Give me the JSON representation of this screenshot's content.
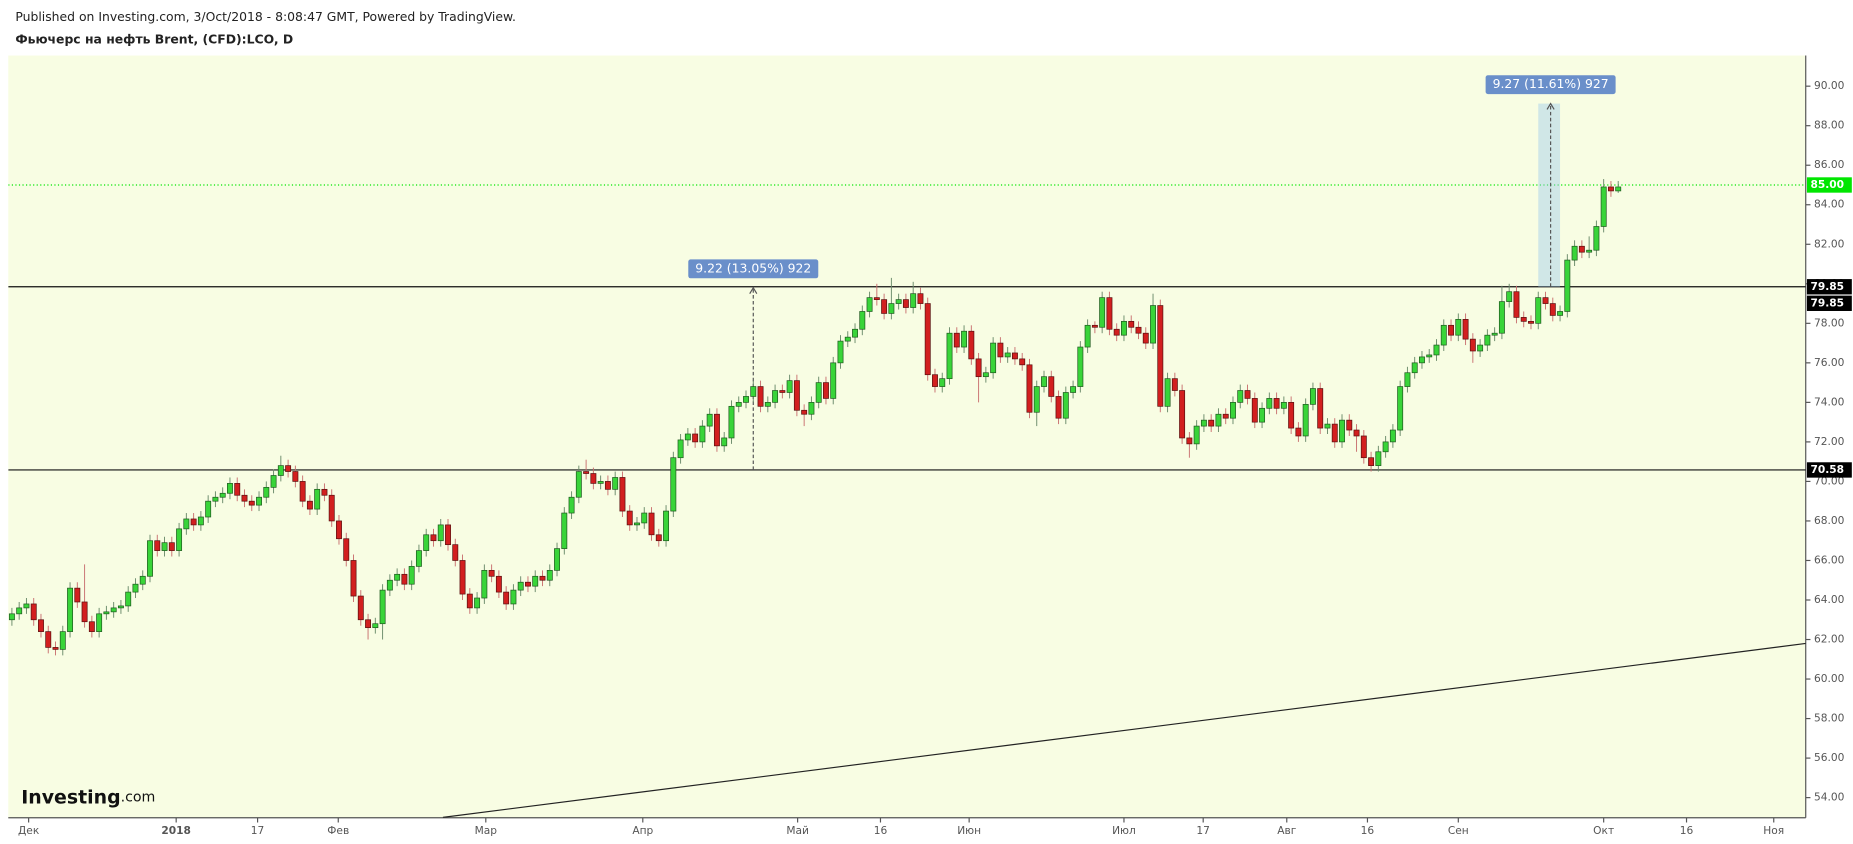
{
  "header": {
    "published": "Published on Investing.com, 3/Oct/2018 - 8:08:47 GMT, Powered by TradingView.",
    "symbol": "Фьючерс на нефть Brent, (CFD):LCO, D"
  },
  "logo": {
    "name": "Investing",
    "suffix": ".com"
  },
  "chart_data": {
    "type": "candlestick",
    "up_color": "#39d439",
    "down_color": "#d21f1f",
    "background": "#f8fde3",
    "xlim": [
      -0.5,
      246.8
    ],
    "ylim": [
      52.98,
      91.55
    ],
    "xticks": [
      {
        "value": 2.3,
        "label": "Дек"
      },
      {
        "value": 22.6,
        "label": "2018"
      },
      {
        "value": 33.8,
        "label": "17"
      },
      {
        "value": 44.9,
        "label": "Фев"
      },
      {
        "value": 65.2,
        "label": "Мар"
      },
      {
        "value": 86.8,
        "label": "Апр"
      },
      {
        "value": 108.1,
        "label": "Май"
      },
      {
        "value": 119.5,
        "label": "16"
      },
      {
        "value": 131.7,
        "label": "Июн"
      },
      {
        "value": 153,
        "label": "Июл"
      },
      {
        "value": 163.9,
        "label": "17"
      },
      {
        "value": 175.4,
        "label": "Авг"
      },
      {
        "value": 186.5,
        "label": "16"
      },
      {
        "value": 199,
        "label": "Сен"
      },
      {
        "value": 219,
        "label": "Окт"
      },
      {
        "value": 230.4,
        "label": "16"
      },
      {
        "value": 242.4,
        "label": "Ноя"
      }
    ],
    "yticks": [
      {
        "value": 54,
        "label": "54.00"
      },
      {
        "value": 56,
        "label": "56.00"
      },
      {
        "value": 58,
        "label": "58.00"
      },
      {
        "value": 60,
        "label": "60.00"
      },
      {
        "value": 62,
        "label": "62.00"
      },
      {
        "value": 64,
        "label": "64.00"
      },
      {
        "value": 66,
        "label": "66.00"
      },
      {
        "value": 68,
        "label": "68.00"
      },
      {
        "value": 70,
        "label": "70.00"
      },
      {
        "value": 72,
        "label": "72.00"
      },
      {
        "value": 74,
        "label": "74.00"
      },
      {
        "value": 76,
        "label": "76.00"
      },
      {
        "value": 78,
        "label": "78.00"
      },
      {
        "value": 80,
        "label": "80.00"
      },
      {
        "value": 82,
        "label": "82.00"
      },
      {
        "value": 84,
        "label": "84.00"
      },
      {
        "value": 86,
        "label": "86.00"
      },
      {
        "value": 88,
        "label": "88.00"
      },
      {
        "value": 90,
        "label": "90.00"
      }
    ],
    "open": [
      63.0,
      63.3,
      63.6,
      63.8,
      63.0,
      62.4,
      61.6,
      61.5,
      62.4,
      64.6,
      63.9,
      62.9,
      62.4,
      63.3,
      63.4,
      63.6,
      63.7,
      64.4,
      64.8,
      65.2,
      67.0,
      66.5,
      66.9,
      66.5,
      67.6,
      68.1,
      67.8,
      68.2,
      69.0,
      69.2,
      69.4,
      69.9,
      69.3,
      69.0,
      68.8,
      69.2,
      69.7,
      70.3,
      70.8,
      70.5,
      70.0,
      69.0,
      68.6,
      69.6,
      69.3,
      68.0,
      67.1,
      66.0,
      64.2,
      63.0,
      62.6,
      62.8,
      64.5,
      65.0,
      65.3,
      64.8,
      65.7,
      66.5,
      67.3,
      67.0,
      67.8,
      66.8,
      66.0,
      64.3,
      63.6,
      64.1,
      65.5,
      65.2,
      64.4,
      63.8,
      64.5,
      64.9,
      64.7,
      65.2,
      65.0,
      65.5,
      66.6,
      68.4,
      69.2,
      70.5,
      70.4,
      69.9,
      70.0,
      69.6,
      70.2,
      68.5,
      67.8,
      67.9,
      68.4,
      67.3,
      67.0,
      68.5,
      71.2,
      72.1,
      72.4,
      72.0,
      72.8,
      73.4,
      71.8,
      72.2,
      73.8,
      74.0,
      74.3,
      74.8,
      73.8,
      74.0,
      74.6,
      74.5,
      75.1,
      73.6,
      73.4,
      74.0,
      75.0,
      74.2,
      76.0,
      77.1,
      77.3,
      77.7,
      78.6,
      79.3,
      79.2,
      78.5,
      79.0,
      79.2,
      78.8,
      79.5,
      79.0,
      75.4,
      74.8,
      75.2,
      77.5,
      76.8,
      77.6,
      76.2,
      75.3,
      75.5,
      77.0,
      76.3,
      76.5,
      76.2,
      75.9,
      73.5,
      74.8,
      75.3,
      74.3,
      73.2,
      74.5,
      74.8,
      76.8,
      77.9,
      77.8,
      79.3,
      77.7,
      77.4,
      78.1,
      77.8,
      77.5,
      77.0,
      78.9,
      73.8,
      75.2,
      74.6,
      72.2,
      71.9,
      72.8,
      73.1,
      72.8,
      73.4,
      73.2,
      74.0,
      74.6,
      74.2,
      73.0,
      73.7,
      74.2,
      73.7,
      74.0,
      72.7,
      72.3,
      73.9,
      74.7,
      72.7,
      72.9,
      72.0,
      73.1,
      72.6,
      72.3,
      71.2,
      70.8,
      71.5,
      72.0,
      72.6,
      74.8,
      75.5,
      76.0,
      76.3,
      76.4,
      76.9,
      77.9,
      77.4,
      78.2,
      77.2,
      76.6,
      76.9,
      77.4,
      77.5,
      79.1,
      79.6,
      78.3,
      78.1,
      78.0,
      79.3,
      79.0,
      78.4,
      78.6,
      81.2,
      81.9,
      81.6,
      81.7,
      82.9,
      84.9,
      84.7
    ],
    "high": [
      63.6,
      63.9,
      64.1,
      64.1,
      63.3,
      62.7,
      61.9,
      62.7,
      64.9,
      64.9,
      65.8,
      63.2,
      63.6,
      63.7,
      63.9,
      64.0,
      64.7,
      65.1,
      65.5,
      67.3,
      67.3,
      67.2,
      67.2,
      67.9,
      68.4,
      68.4,
      68.5,
      69.3,
      69.5,
      69.7,
      70.2,
      70.2,
      69.6,
      69.3,
      69.5,
      70.0,
      70.6,
      71.3,
      71.1,
      70.8,
      70.3,
      69.3,
      69.9,
      69.9,
      69.6,
      68.3,
      67.4,
      66.3,
      64.5,
      63.3,
      63.1,
      64.8,
      65.3,
      65.6,
      65.6,
      66.0,
      66.8,
      67.6,
      67.6,
      68.1,
      68.1,
      67.1,
      66.3,
      64.6,
      64.4,
      65.8,
      65.8,
      65.5,
      64.7,
      64.8,
      65.2,
      65.2,
      65.5,
      65.5,
      65.8,
      66.9,
      68.7,
      69.5,
      70.8,
      71.1,
      70.7,
      70.3,
      70.3,
      70.5,
      70.5,
      68.8,
      68.2,
      68.7,
      68.7,
      67.6,
      68.8,
      71.5,
      72.4,
      72.7,
      72.7,
      73.1,
      73.7,
      73.7,
      72.5,
      74.1,
      74.3,
      74.6,
      75.1,
      75.1,
      74.3,
      74.9,
      74.9,
      75.4,
      75.4,
      73.9,
      74.3,
      75.3,
      75.3,
      76.3,
      77.4,
      77.6,
      78.0,
      78.9,
      79.6,
      80.0,
      79.5,
      80.3,
      79.5,
      79.5,
      80.1,
      79.8,
      79.3,
      75.7,
      75.5,
      77.8,
      77.8,
      77.9,
      77.9,
      76.5,
      75.8,
      77.3,
      77.3,
      76.8,
      76.8,
      76.5,
      76.2,
      75.1,
      75.6,
      75.6,
      74.6,
      74.8,
      75.1,
      77.1,
      78.2,
      78.1,
      79.6,
      79.6,
      78.0,
      78.4,
      78.4,
      78.1,
      77.8,
      79.5,
      79.2,
      75.5,
      75.5,
      74.9,
      72.5,
      73.1,
      73.4,
      73.4,
      73.7,
      73.7,
      74.3,
      74.9,
      74.9,
      74.5,
      74.0,
      74.5,
      74.5,
      74.3,
      74.3,
      73.0,
      74.2,
      75.0,
      75.0,
      73.2,
      73.2,
      73.4,
      73.4,
      72.9,
      72.6,
      71.5,
      71.8,
      72.3,
      72.9,
      75.1,
      75.8,
      76.3,
      76.6,
      76.7,
      77.2,
      78.2,
      78.2,
      78.5,
      78.5,
      77.5,
      77.2,
      77.7,
      77.8,
      79.9,
      80.0,
      79.9,
      78.6,
      78.4,
      79.6,
      79.6,
      79.3,
      78.9,
      81.5,
      82.2,
      82.2,
      82.4,
      83.2,
      85.3,
      85.2,
      85.2
    ],
    "low": [
      62.7,
      63.0,
      63.3,
      62.7,
      62.1,
      61.3,
      61.2,
      61.2,
      62.1,
      63.6,
      62.6,
      62.1,
      62.1,
      63.0,
      63.1,
      63.3,
      63.4,
      64.1,
      64.5,
      64.9,
      66.2,
      66.2,
      66.2,
      66.2,
      67.3,
      67.5,
      67.5,
      67.9,
      68.7,
      68.9,
      69.1,
      69.0,
      68.7,
      68.5,
      68.5,
      68.9,
      69.4,
      70.0,
      70.2,
      69.7,
      68.7,
      68.3,
      68.3,
      69.0,
      67.7,
      66.8,
      65.7,
      63.9,
      62.7,
      62.0,
      62.3,
      62.0,
      64.2,
      64.7,
      64.5,
      64.5,
      65.4,
      66.2,
      66.7,
      66.7,
      66.5,
      65.7,
      64.0,
      63.3,
      63.3,
      63.8,
      64.9,
      64.1,
      63.5,
      63.5,
      64.2,
      64.4,
      64.4,
      64.7,
      64.7,
      65.2,
      66.3,
      68.1,
      68.9,
      70.1,
      69.6,
      69.6,
      69.3,
      69.3,
      68.2,
      67.5,
      67.5,
      67.6,
      67.0,
      66.7,
      66.7,
      68.2,
      70.9,
      71.8,
      71.7,
      71.7,
      72.5,
      71.5,
      71.5,
      71.9,
      73.5,
      73.7,
      74.0,
      73.5,
      73.5,
      73.7,
      74.2,
      74.2,
      73.3,
      72.8,
      73.1,
      73.7,
      73.9,
      73.9,
      75.7,
      76.8,
      77.0,
      77.4,
      78.3,
      78.9,
      78.2,
      78.2,
      78.7,
      78.5,
      78.5,
      78.7,
      75.1,
      74.5,
      74.5,
      74.9,
      76.5,
      76.5,
      75.9,
      74.0,
      75.0,
      75.2,
      76.0,
      76.0,
      75.9,
      75.6,
      73.2,
      72.8,
      74.5,
      74.0,
      72.9,
      72.9,
      74.2,
      74.5,
      76.5,
      77.5,
      77.5,
      77.4,
      77.1,
      77.1,
      77.5,
      77.2,
      76.7,
      76.7,
      73.5,
      73.5,
      74.3,
      71.9,
      71.2,
      71.6,
      72.5,
      72.5,
      72.5,
      72.9,
      72.9,
      73.7,
      73.9,
      72.7,
      72.7,
      73.4,
      73.4,
      73.4,
      72.4,
      72.0,
      72.0,
      73.6,
      72.4,
      72.4,
      71.7,
      71.7,
      72.3,
      71.5,
      70.9,
      70.5,
      70.5,
      71.2,
      71.7,
      72.3,
      74.5,
      75.2,
      75.7,
      76.0,
      76.1,
      76.6,
      77.1,
      77.1,
      76.9,
      76.0,
      76.3,
      76.6,
      77.1,
      77.2,
      78.8,
      78.0,
      77.8,
      77.7,
      77.7,
      78.7,
      78.1,
      78.1,
      78.3,
      80.9,
      81.3,
      81.3,
      81.4,
      82.6,
      84.4,
      84.6
    ],
    "close": [
      63.3,
      63.6,
      63.8,
      63.0,
      62.4,
      61.6,
      61.5,
      62.4,
      64.6,
      63.9,
      62.9,
      62.4,
      63.3,
      63.4,
      63.6,
      63.7,
      64.4,
      64.8,
      65.2,
      67.0,
      66.5,
      66.9,
      66.5,
      67.6,
      68.1,
      67.8,
      68.2,
      69.0,
      69.2,
      69.4,
      69.9,
      69.3,
      69.0,
      68.8,
      69.2,
      69.7,
      70.3,
      70.8,
      70.5,
      70.0,
      69.0,
      68.6,
      69.6,
      69.3,
      68.0,
      67.1,
      66.0,
      64.2,
      63.0,
      62.6,
      62.8,
      64.5,
      65.0,
      65.3,
      64.8,
      65.7,
      66.5,
      67.3,
      67.0,
      67.8,
      66.8,
      66.0,
      64.3,
      63.6,
      64.1,
      65.5,
      65.2,
      64.4,
      63.8,
      64.5,
      64.9,
      64.7,
      65.2,
      65.0,
      65.5,
      66.6,
      68.4,
      69.2,
      70.5,
      70.4,
      69.9,
      70.0,
      69.6,
      70.2,
      68.5,
      67.8,
      67.9,
      68.4,
      67.3,
      67.0,
      68.5,
      71.2,
      72.1,
      72.4,
      72.0,
      72.8,
      73.4,
      71.8,
      72.2,
      73.8,
      74.0,
      74.3,
      74.8,
      73.8,
      74.0,
      74.6,
      74.5,
      75.1,
      73.6,
      73.4,
      74.0,
      75.0,
      74.2,
      76.0,
      77.1,
      77.3,
      77.7,
      78.6,
      79.3,
      79.2,
      78.5,
      79.0,
      79.2,
      78.8,
      79.5,
      79.0,
      75.4,
      74.8,
      75.2,
      77.5,
      76.8,
      77.6,
      76.2,
      75.3,
      75.5,
      77.0,
      76.3,
      76.5,
      76.2,
      75.9,
      73.5,
      74.8,
      75.3,
      74.3,
      73.2,
      74.5,
      74.8,
      76.8,
      77.9,
      77.8,
      79.3,
      77.7,
      77.4,
      78.1,
      77.8,
      77.5,
      77.0,
      78.9,
      73.8,
      75.2,
      74.6,
      72.2,
      71.9,
      72.8,
      73.1,
      72.8,
      73.4,
      73.2,
      74.0,
      74.6,
      74.2,
      73.0,
      73.7,
      74.2,
      73.7,
      74.0,
      72.7,
      72.3,
      73.9,
      74.7,
      72.7,
      72.9,
      72.0,
      73.1,
      72.6,
      72.3,
      71.2,
      70.8,
      71.5,
      72.0,
      72.6,
      74.8,
      75.5,
      76.0,
      76.3,
      76.4,
      76.9,
      77.9,
      77.4,
      78.2,
      77.2,
      76.6,
      76.9,
      77.4,
      77.5,
      79.1,
      79.6,
      78.3,
      78.1,
      78.0,
      79.3,
      79.0,
      78.4,
      78.6,
      81.2,
      81.9,
      81.6,
      81.7,
      82.9,
      84.9,
      84.7,
      84.9
    ],
    "hlines": [
      {
        "value": 79.85,
        "labels": [
          "79.85",
          "79.85"
        ]
      },
      {
        "value": 70.58,
        "labels": [
          "70.58"
        ]
      }
    ],
    "last_price": {
      "value": 85.0,
      "label": "85.00",
      "color": "#00e600"
    },
    "trendline": {
      "x": [
        59.3,
        246.8
      ],
      "y": [
        53.0,
        61.8
      ]
    },
    "measures": [
      {
        "label": "9.22 (13.05%) 922",
        "x": 102,
        "from": 70.58,
        "to": 79.8
      },
      {
        "label": "9.27 (11.61%) 927",
        "x": 211.7,
        "x0": 210,
        "x1": 213,
        "from": 79.85,
        "to": 89.12
      }
    ]
  }
}
